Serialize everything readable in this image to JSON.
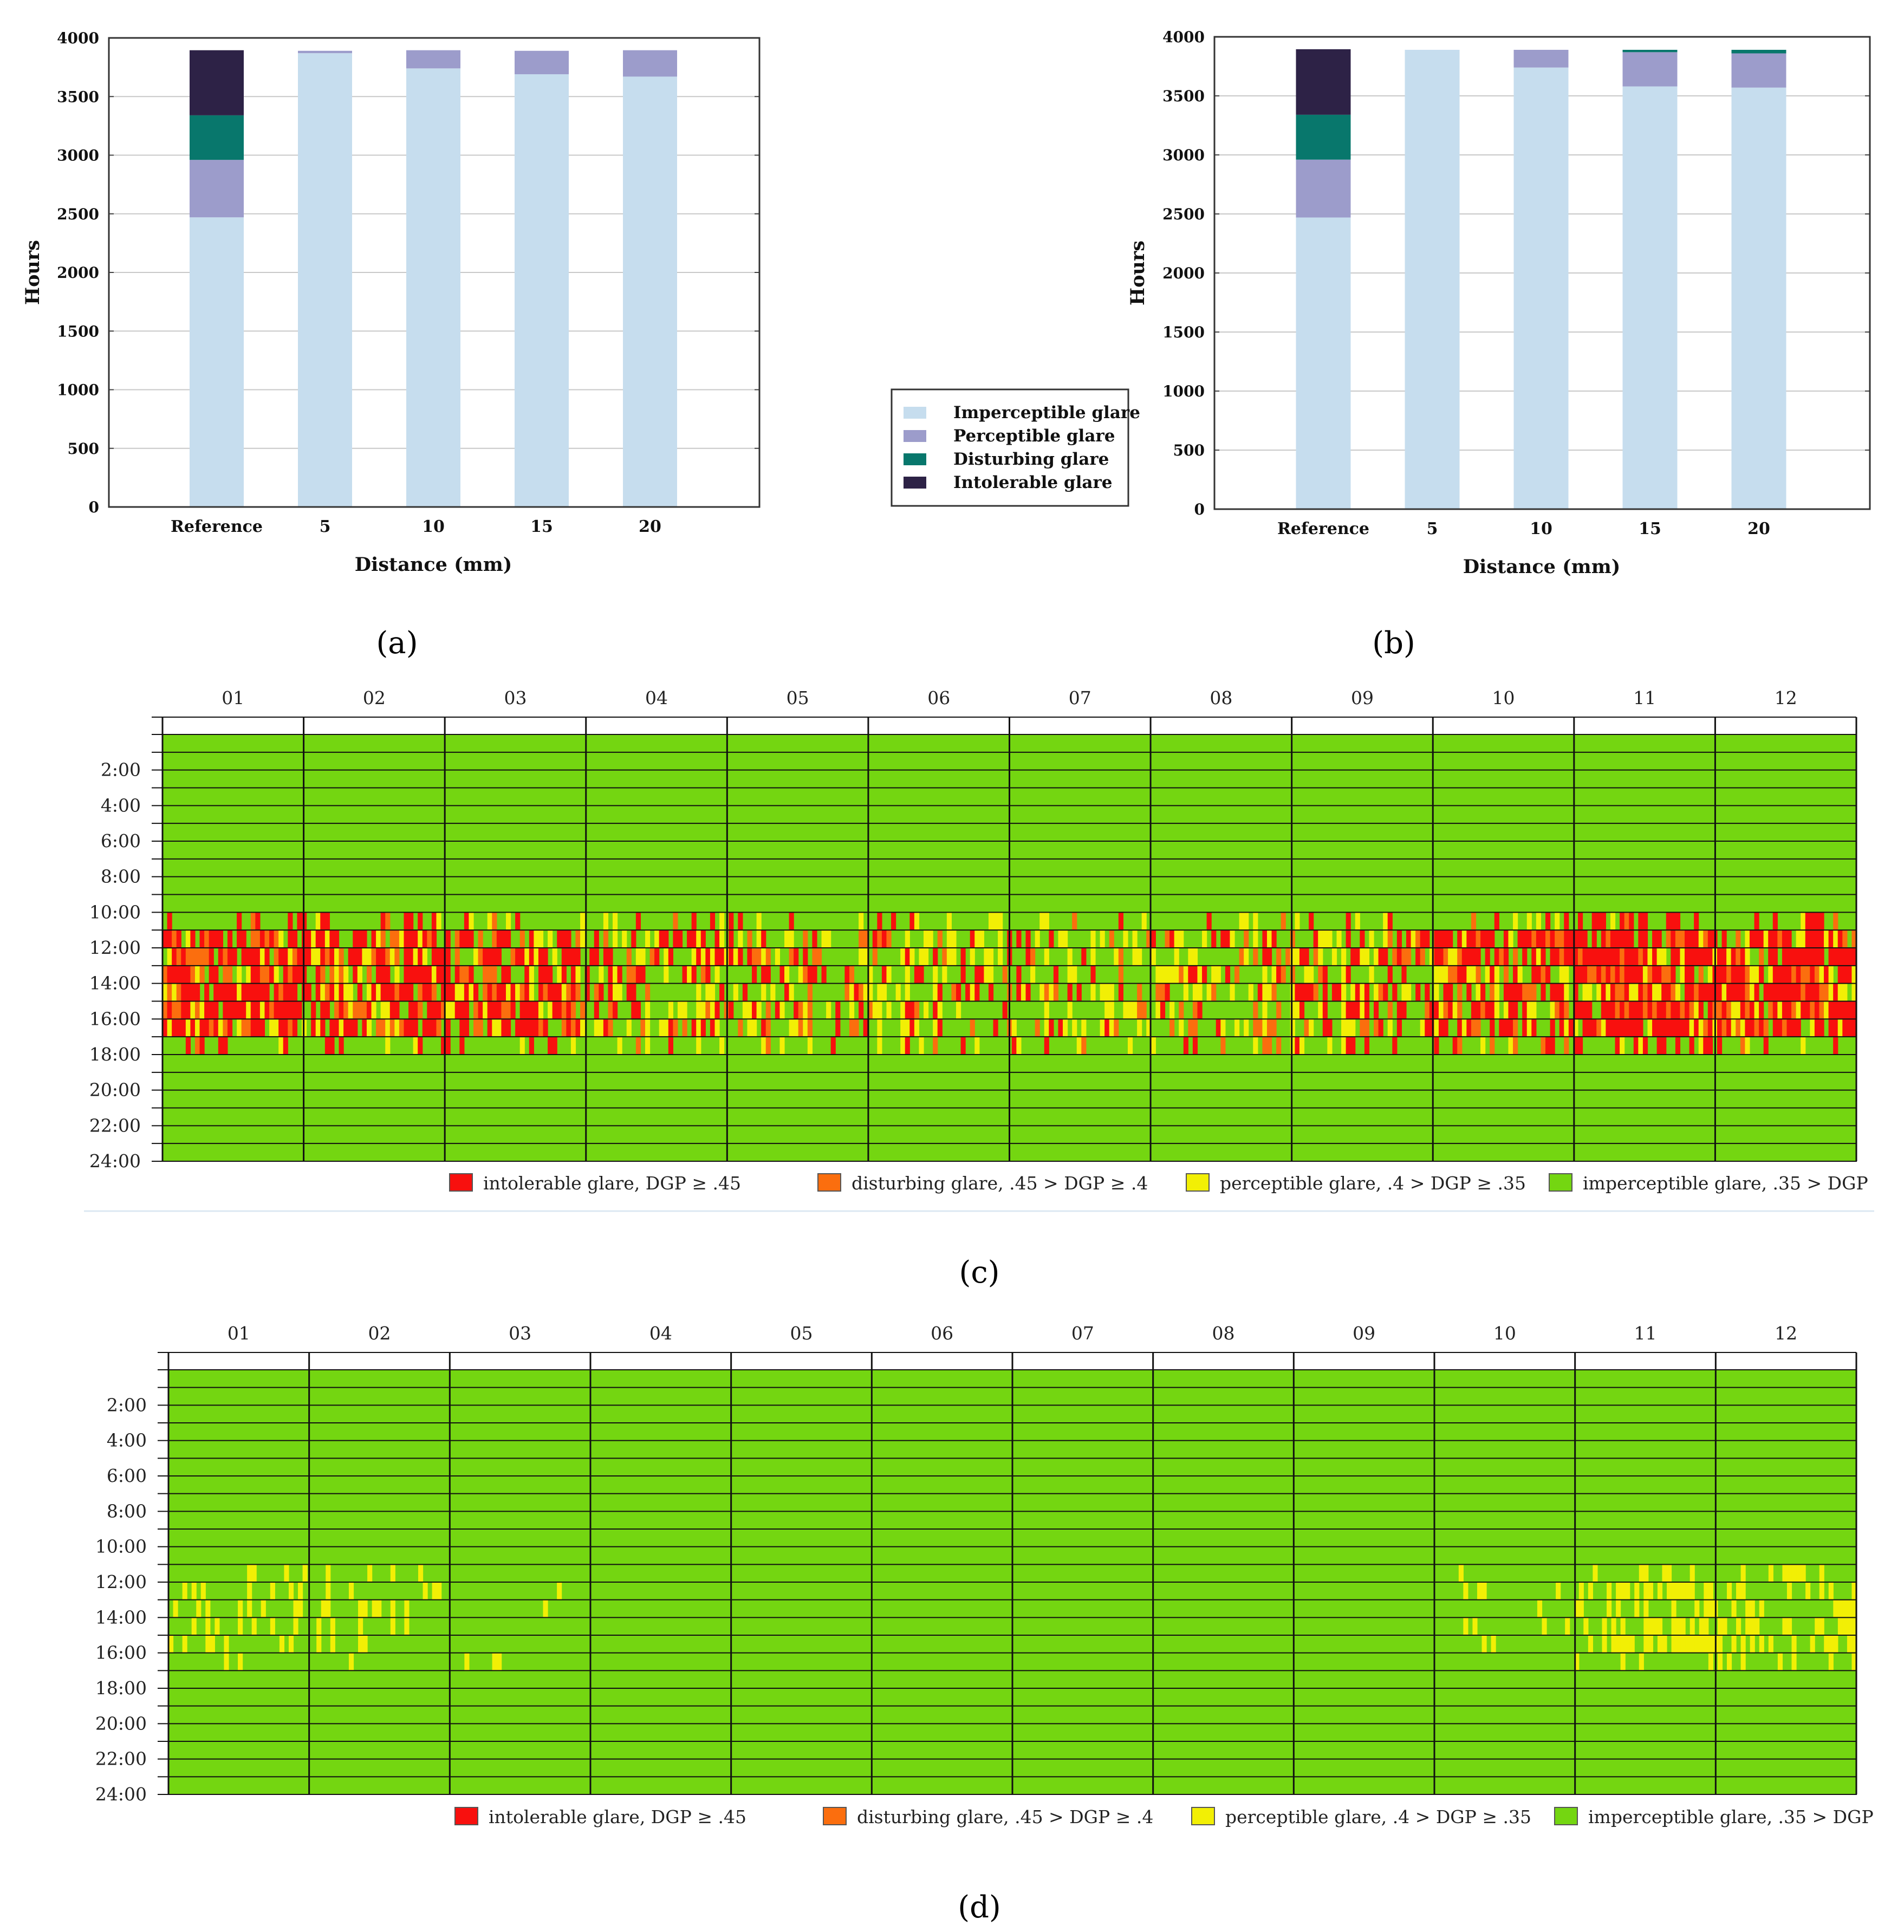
{
  "colors": {
    "imperceptible_bar": "#c6ddee",
    "perceptible_bar": "#9c9ccb",
    "disturbing_bar": "#08776c",
    "intolerable_bar": "#2d2246",
    "heat_green": "#74d611",
    "heat_yellow": "#f2ef05",
    "heat_orange": "#fb6e0e",
    "heat_red": "#f8100e",
    "grid": "#c8c8c8"
  },
  "legend_bars": [
    {
      "key": "imperceptible",
      "label": "Imperceptible glare"
    },
    {
      "key": "perceptible",
      "label": "Perceptible glare"
    },
    {
      "key": "disturbing",
      "label": "Disturbing glare"
    },
    {
      "key": "intolerable",
      "label": "Intolerable glare"
    }
  ],
  "legend_heat": [
    {
      "key": "red",
      "label": "intolerable glare, DGP ≥ .45"
    },
    {
      "key": "orange",
      "label": "disturbing glare, .45 > DGP ≥ .4"
    },
    {
      "key": "yellow",
      "label": "perceptible glare, .4 > DGP ≥ .35"
    },
    {
      "key": "green",
      "label": "imperceptible glare, .35 > DGP"
    }
  ],
  "panel_labels": [
    "(a)",
    "(b)",
    "(c)",
    "(d)"
  ],
  "chart_data": [
    {
      "panel": "(a)",
      "type": "bar",
      "stacked": true,
      "xlabel": "Distance (mm)",
      "ylabel": "Hours",
      "ylim": [
        0,
        4000
      ],
      "yticks": [
        0,
        500,
        1000,
        1500,
        2000,
        2500,
        3000,
        3500,
        4000
      ],
      "grid": true,
      "categories": [
        "Reference",
        "5",
        "10",
        "15",
        "20"
      ],
      "series": [
        {
          "name": "Imperceptible glare",
          "key": "imperceptible",
          "values": [
            2470,
            3870,
            3740,
            3690,
            3670
          ]
        },
        {
          "name": "Perceptible glare",
          "key": "perceptible",
          "values": [
            490,
            20,
            155,
            200,
            225
          ]
        },
        {
          "name": "Disturbing glare",
          "key": "disturbing",
          "values": [
            380,
            0,
            0,
            0,
            0
          ]
        },
        {
          "name": "Intolerable glare",
          "key": "intolerable",
          "values": [
            555,
            0,
            0,
            0,
            0
          ]
        }
      ]
    },
    {
      "panel": "(b)",
      "type": "bar",
      "stacked": true,
      "xlabel": "Distance (mm)",
      "ylabel": "Hours",
      "ylim": [
        0,
        4000
      ],
      "yticks": [
        0,
        500,
        1000,
        1500,
        2000,
        2500,
        3000,
        3500,
        4000
      ],
      "grid": true,
      "categories": [
        "Reference",
        "5",
        "10",
        "15",
        "20"
      ],
      "series": [
        {
          "name": "Imperceptible glare",
          "key": "imperceptible",
          "values": [
            2470,
            3890,
            3740,
            3580,
            3570
          ]
        },
        {
          "name": "Perceptible glare",
          "key": "perceptible",
          "values": [
            490,
            0,
            150,
            290,
            290
          ]
        },
        {
          "name": "Disturbing glare",
          "key": "disturbing",
          "values": [
            380,
            0,
            0,
            20,
            30
          ]
        },
        {
          "name": "Intolerable glare",
          "key": "intolerable",
          "values": [
            555,
            0,
            0,
            0,
            0
          ]
        }
      ]
    },
    {
      "panel": "(c)",
      "type": "heatmap",
      "months": [
        "01",
        "02",
        "03",
        "04",
        "05",
        "06",
        "07",
        "08",
        "09",
        "10",
        "11",
        "12"
      ],
      "hour_labels": [
        "2:00",
        "4:00",
        "6:00",
        "8:00",
        "10:00",
        "12:00",
        "14:00",
        "16:00",
        "18:00",
        "20:00",
        "22:00",
        "24:00"
      ],
      "default": "green",
      "glare_profile": [
        {
          "hours": [
            11,
            17
          ],
          "intensity": [
            0.85,
            0.8,
            0.75,
            0.55,
            0.45,
            0.42,
            0.4,
            0.5,
            0.55,
            0.8,
            0.9,
            0.85
          ]
        }
      ]
    },
    {
      "panel": "(d)",
      "type": "heatmap",
      "months": [
        "01",
        "02",
        "03",
        "04",
        "05",
        "06",
        "07",
        "08",
        "09",
        "10",
        "11",
        "12"
      ],
      "hour_labels": [
        "2:00",
        "4:00",
        "6:00",
        "8:00",
        "10:00",
        "12:00",
        "14:00",
        "16:00",
        "18:00",
        "20:00",
        "22:00",
        "24:00"
      ],
      "default": "green",
      "glare_profile": [
        {
          "hours": [
            12,
            16
          ],
          "intensity": [
            0.3,
            0.2,
            0.03,
            0,
            0,
            0,
            0,
            0,
            0,
            0.12,
            0.45,
            0.35
          ]
        }
      ]
    }
  ]
}
